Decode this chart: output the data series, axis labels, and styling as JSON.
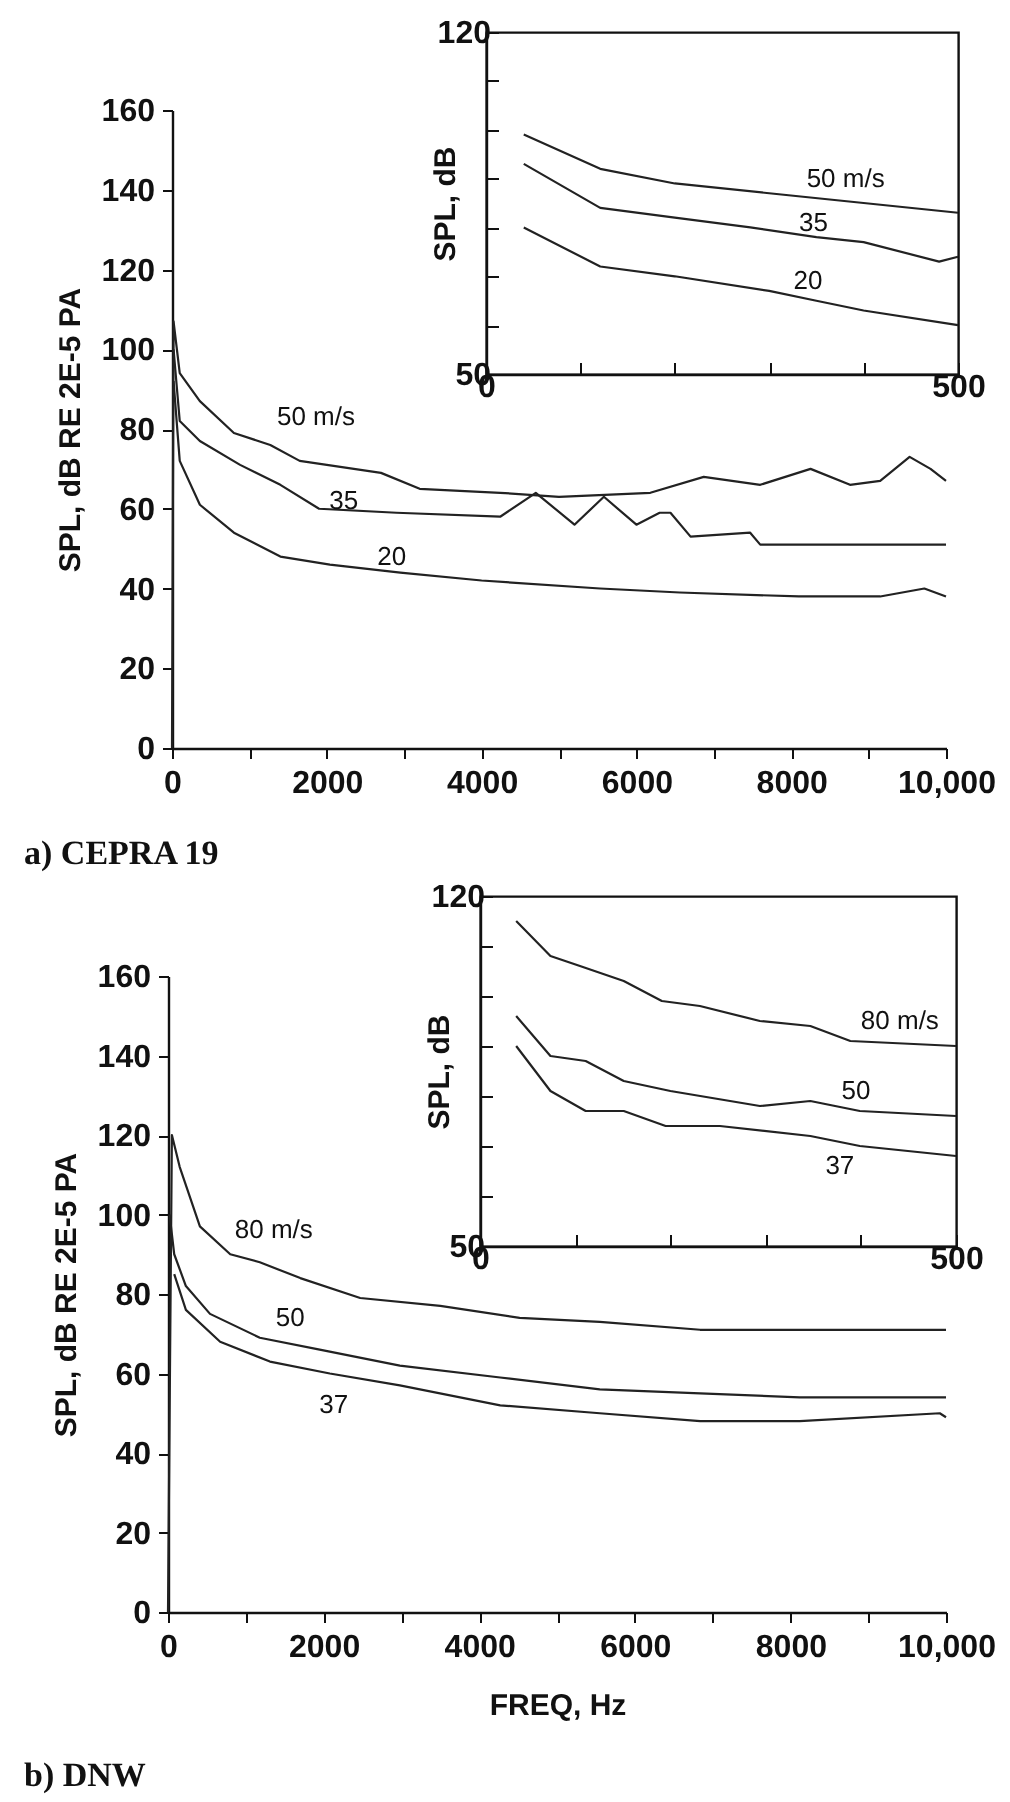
{
  "chart_data": [
    {
      "type": "line",
      "ylabel": "SPL, dB RE 2E-5 PA",
      "xlim": [
        0,
        10000
      ],
      "ylim": [
        0,
        160
      ],
      "xticks": [
        0,
        {
          "value": 1000,
          "label": null
        },
        2000,
        {
          "value": 3000,
          "label": null
        },
        4000,
        {
          "value": 5000,
          "label": null
        },
        6000,
        {
          "value": 7000,
          "label": null
        },
        8000,
        {
          "value": 9000,
          "label": null
        },
        {
          "value": 10000,
          "label": "10,000"
        }
      ],
      "yticks": [
        0,
        20,
        40,
        60,
        80,
        100,
        120,
        140,
        160
      ],
      "series": [
        {
          "name": "50 m/s",
          "color": "#222222",
          "x": [
            0,
            20,
            100,
            360,
            800,
            1270,
            1650,
            2000,
            2700,
            3200,
            4240,
            5000,
            6180,
            6870,
            7600,
            8250,
            8760,
            9150,
            9530,
            9800,
            10000
          ],
          "values": [
            0,
            107,
            94,
            87,
            79,
            76,
            72,
            71,
            69,
            65,
            64,
            63,
            64,
            68,
            66,
            70,
            66,
            67,
            73,
            70,
            67
          ]
        },
        {
          "name": "35",
          "color": "#222222",
          "x": [
            20,
            100,
            360,
            880,
            1400,
            1900,
            2900,
            4240,
            4700,
            5200,
            5580,
            6000,
            6300,
            6440,
            6700,
            7470,
            7600,
            8630,
            10000
          ],
          "values": [
            100,
            82,
            77,
            71,
            66,
            60,
            59,
            58,
            64,
            56,
            63,
            56,
            59,
            59,
            53,
            54,
            51,
            51,
            51
          ]
        },
        {
          "name": "20",
          "color": "#222222",
          "x": [
            20,
            100,
            360,
            800,
            1400,
            2040,
            2950,
            4000,
            5530,
            6560,
            8100,
            9150,
            9720,
            10000
          ],
          "values": [
            92,
            72,
            61,
            54,
            48,
            46,
            44,
            42,
            40,
            39,
            38,
            38,
            40,
            38
          ]
        }
      ],
      "annotations": [
        "a) CEPRA 19"
      ]
    },
    {
      "type": "line",
      "ylabel": "SPL, dB",
      "xlim": [
        0,
        500
      ],
      "ylim": [
        50,
        120
      ],
      "xticks": [
        0,
        {
          "value": 100,
          "label": null
        },
        {
          "value": 200,
          "label": null
        },
        {
          "value": 300,
          "label": null
        },
        {
          "value": 400,
          "label": null
        },
        500
      ],
      "yticks": [
        50,
        {
          "value": 60,
          "label": null
        },
        {
          "value": 70,
          "label": null
        },
        {
          "value": 80,
          "label": null
        },
        {
          "value": 90,
          "label": null
        },
        {
          "value": 100,
          "label": null
        },
        {
          "value": 110,
          "label": null
        },
        120
      ],
      "series": [
        {
          "name": "50 m/s",
          "color": "#222222",
          "x": [
            40,
            121,
            200,
            300,
            400,
            500
          ],
          "values": [
            99,
            92,
            89,
            87,
            85,
            83
          ]
        },
        {
          "name": "35",
          "color": "#222222",
          "x": [
            40,
            121,
            200,
            280,
            350,
            400,
            480,
            500
          ],
          "values": [
            93,
            84,
            82,
            80,
            78,
            77,
            73,
            74
          ]
        },
        {
          "name": "20",
          "color": "#222222",
          "x": [
            40,
            121,
            200,
            300,
            350,
            400,
            500
          ],
          "values": [
            80,
            72,
            70,
            67,
            65,
            63,
            60
          ]
        }
      ]
    },
    {
      "type": "line",
      "xlabel": "FREQ, Hz",
      "ylabel": "SPL, dB RE 2E-5 PA",
      "xlim": [
        0,
        10000
      ],
      "ylim": [
        0,
        160
      ],
      "xticks": [
        0,
        {
          "value": 1000,
          "label": null
        },
        2000,
        {
          "value": 3000,
          "label": null
        },
        4000,
        {
          "value": 5000,
          "label": null
        },
        6000,
        {
          "value": 7000,
          "label": null
        },
        8000,
        {
          "value": 9000,
          "label": null
        },
        {
          "value": 10000,
          "label": "10,000"
        }
      ],
      "yticks": [
        0,
        20,
        40,
        60,
        80,
        100,
        120,
        140,
        160
      ],
      "series": [
        {
          "name": "80 m/s",
          "color": "#222222",
          "x": [
            0,
            50,
            150,
            410,
            800,
            1180,
            1700,
            2470,
            3500,
            4520,
            5550,
            6840,
            8120,
            10000
          ],
          "values": [
            0,
            120,
            112,
            97,
            90,
            88,
            84,
            79,
            77,
            74,
            73,
            71,
            71,
            71
          ]
        },
        {
          "name": "50",
          "color": "#222222",
          "x": [
            20,
            80,
            230,
            540,
            1180,
            1950,
            2980,
            4270,
            5550,
            6840,
            8120,
            10000
          ],
          "values": [
            100,
            90,
            82,
            75,
            69,
            66,
            62,
            59,
            56,
            55,
            54,
            54
          ]
        },
        {
          "name": "37",
          "color": "#222222",
          "x": [
            80,
            230,
            670,
            1310,
            2080,
            2980,
            4270,
            5550,
            6840,
            8120,
            9920,
            10000
          ],
          "values": [
            85,
            76,
            68,
            63,
            60,
            57,
            52,
            50,
            48,
            48,
            50,
            49
          ]
        }
      ],
      "annotations": [
        "b) DNW"
      ]
    },
    {
      "type": "line",
      "ylabel": "SPL, dB",
      "xlim": [
        0,
        500
      ],
      "ylim": [
        50,
        120
      ],
      "xticks": [
        0,
        {
          "value": 100,
          "label": null
        },
        {
          "value": 200,
          "label": null
        },
        {
          "value": 300,
          "label": null
        },
        {
          "value": 400,
          "label": null
        },
        500
      ],
      "yticks": [
        50,
        {
          "value": 60,
          "label": null
        },
        {
          "value": 70,
          "label": null
        },
        {
          "value": 80,
          "label": null
        },
        {
          "value": 90,
          "label": null
        },
        {
          "value": 100,
          "label": null
        },
        {
          "value": 110,
          "label": null
        },
        120
      ],
      "series": [
        {
          "name": "80 m/s",
          "color": "#222222",
          "x": [
            38,
            74,
            105,
            151,
            191,
            231,
            294,
            347,
            389,
            500
          ],
          "values": [
            115,
            108,
            106,
            103,
            99,
            98,
            95,
            94,
            91,
            90
          ]
        },
        {
          "name": "50",
          "color": "#222222",
          "x": [
            38,
            74,
            111,
            151,
            200,
            294,
            347,
            399,
            500
          ],
          "values": [
            96,
            88,
            87,
            83,
            81,
            78,
            79,
            77,
            76
          ]
        },
        {
          "name": "37",
          "color": "#222222",
          "x": [
            38,
            74,
            111,
            151,
            195,
            252,
            347,
            399,
            500
          ],
          "values": [
            90,
            81,
            77,
            77,
            74,
            74,
            72,
            70,
            68
          ]
        }
      ]
    }
  ]
}
